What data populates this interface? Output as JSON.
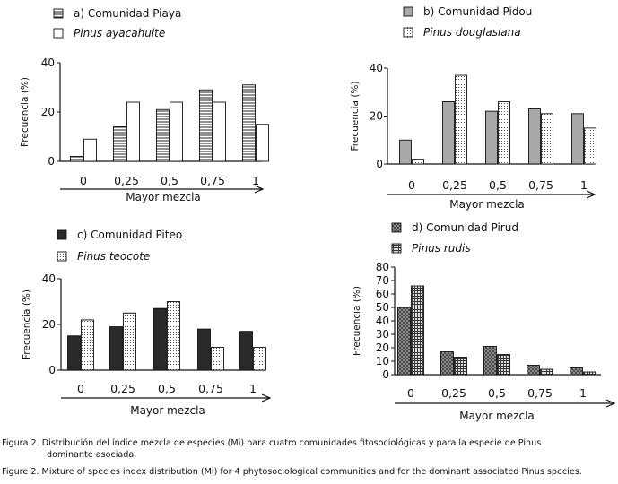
{
  "chart_data": [
    {
      "type": "bar",
      "panel": "a",
      "categories": [
        "0",
        "0,25",
        "0,5",
        "0,75",
        "1"
      ],
      "series": [
        {
          "name": "a) Comunidad Piaya",
          "italic": false,
          "pattern": "hstripe",
          "values": [
            2,
            14,
            21,
            29,
            31
          ]
        },
        {
          "name": "Pinus ayacahuite",
          "italic": true,
          "pattern": "white",
          "values": [
            9,
            24,
            24,
            24,
            15
          ]
        }
      ],
      "ylabel": "Frecuencia (%)",
      "xlabel": "Mayor mezcla",
      "ylim": [
        0,
        40
      ],
      "yticks": [
        "0",
        "20",
        "40"
      ]
    },
    {
      "type": "bar",
      "panel": "b",
      "categories": [
        "0",
        "0,25",
        "0,5",
        "0,75",
        "1"
      ],
      "series": [
        {
          "name": "b) Comunidad Pidou",
          "italic": false,
          "pattern": "gray",
          "values": [
            10,
            26,
            22,
            23,
            21
          ]
        },
        {
          "name": "Pinus douglasiana",
          "italic": true,
          "pattern": "dots",
          "values": [
            2,
            37,
            26,
            21,
            15
          ]
        }
      ],
      "ylabel": "Frecuencia (%)",
      "xlabel": "Mayor mezcla",
      "ylim": [
        0,
        40
      ],
      "yticks": [
        "0",
        "20",
        "40"
      ]
    },
    {
      "type": "bar",
      "panel": "c",
      "categories": [
        "0",
        "0,25",
        "0,5",
        "0,75",
        "1"
      ],
      "series": [
        {
          "name": "c) Comunidad Piteo",
          "italic": false,
          "pattern": "black",
          "values": [
            15,
            19,
            27,
            18,
            17
          ]
        },
        {
          "name": "Pinus teocote",
          "italic": true,
          "pattern": "dots",
          "values": [
            22,
            25,
            30,
            10,
            10
          ]
        }
      ],
      "ylabel": "Frecuencia (%)",
      "xlabel": "Mayor mezcla",
      "ylim": [
        0,
        40
      ],
      "yticks": [
        "0",
        "20",
        "40"
      ]
    },
    {
      "type": "bar",
      "panel": "d",
      "categories": [
        "0",
        "0,25",
        "0,5",
        "0,75",
        "1"
      ],
      "series": [
        {
          "name": "d) Comunidad Pirud",
          "italic": false,
          "pattern": "crosshatch",
          "values": [
            50,
            17,
            21,
            7,
            5
          ]
        },
        {
          "name": "Pinus rudis",
          "italic": true,
          "pattern": "grid",
          "values": [
            66,
            13,
            15,
            4,
            2
          ]
        }
      ],
      "ylabel": "Frecuencia (%)",
      "xlabel": "Mayor mezcla",
      "ylim": [
        0,
        80
      ],
      "yticks": [
        "0",
        "10",
        "20",
        "30",
        "40",
        "50",
        "60",
        "70",
        "80"
      ]
    }
  ],
  "caption": {
    "es_line1": "Figura 2. Distribución del índice mezcla de especies (Mi) para cuatro comunidades fitosociológicas y para la especie de Pinus",
    "es_line2": "dominante asociada.",
    "en_line": "Figure 2. Mixture of species index distribution (Mi) for 4 phytosociological communities and for the dominant associated Pinus species."
  }
}
